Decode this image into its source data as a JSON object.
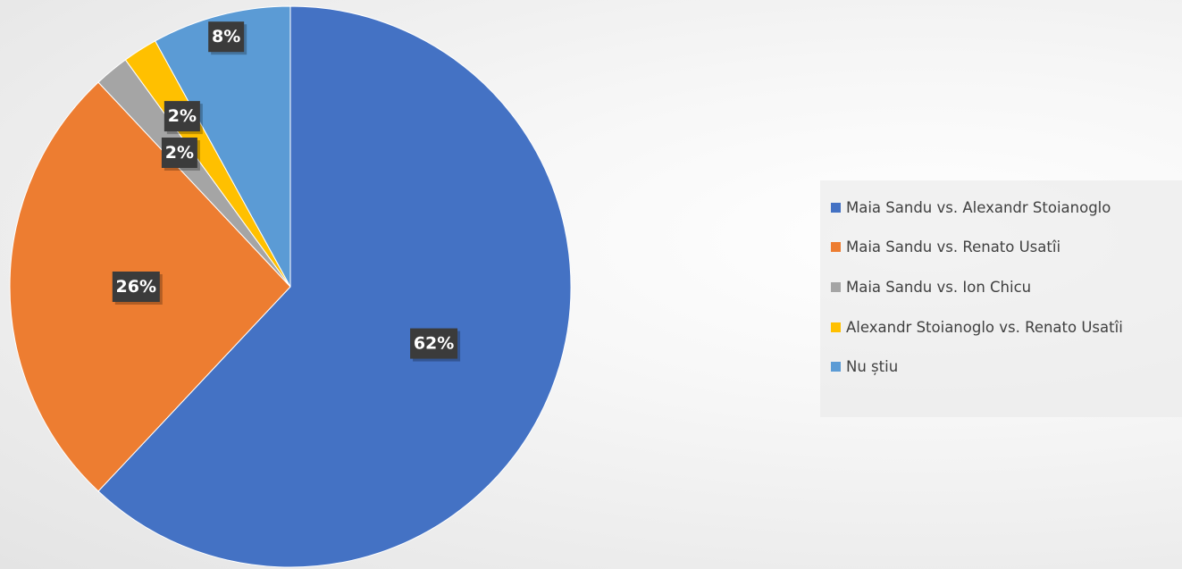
{
  "chart_data": {
    "type": "pie",
    "title": "",
    "categories": [
      "Maia Sandu vs. Alexandr Stoianoglo",
      "Maia Sandu vs. Renato Usatîi",
      "Maia Sandu vs. Ion Chicu",
      "Alexandr Stoianoglo vs. Renato Usatîi",
      "Nu știu"
    ],
    "values": [
      62,
      26,
      2,
      2,
      8
    ],
    "data_labels": [
      "62%",
      "26%",
      "2%",
      "2%",
      "8%"
    ],
    "colors": [
      "#4472C4",
      "#ED7D31",
      "#A5A5A5",
      "#FFC000",
      "#5B9BD5"
    ],
    "legend_position": "right"
  }
}
